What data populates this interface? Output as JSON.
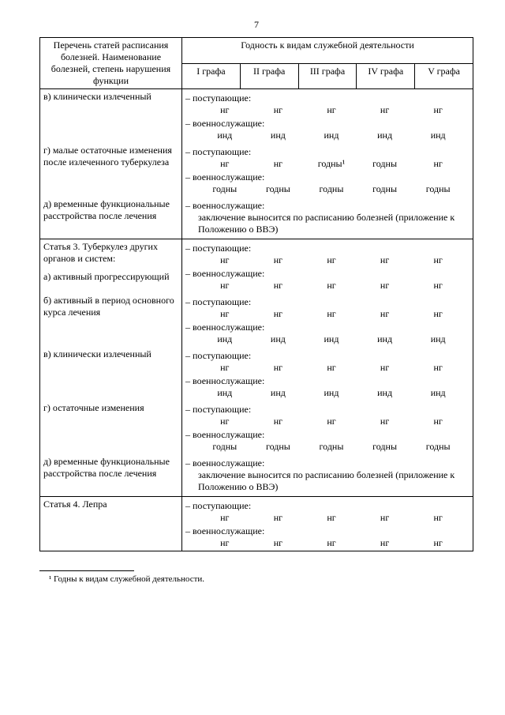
{
  "page_number": "7",
  "header": {
    "label_col": "Перечень статей расписания болезней. Наименование болезней, степень нарушения функции",
    "group": "Годность к видам служебной деятельности",
    "cols": [
      "I графа",
      "II графа",
      "III графа",
      "IV графа",
      "V графа"
    ]
  },
  "blocks": [
    {
      "rows": [
        {
          "label": "в) клинически излеченный",
          "subs": [
            {
              "heading": "– поступающие:",
              "vals": [
                "нг",
                "нг",
                "нг",
                "нг",
                "нг"
              ]
            },
            {
              "heading": "– военнослужащие:",
              "vals": [
                "инд",
                "инд",
                "инд",
                "инд",
                "инд"
              ]
            }
          ]
        },
        {
          "label": "г) малые остаточные изменения после излеченного туберкулеза",
          "subs": [
            {
              "heading": "– поступающие:",
              "vals": [
                "нг",
                "нг",
                "годны¹",
                "годны",
                "нг"
              ]
            },
            {
              "heading": "– военнослужащие:",
              "vals": [
                "годны",
                "годны",
                "годны",
                "годны",
                "годны"
              ]
            }
          ]
        },
        {
          "label": "д) временные функциональные расстройства после лечения",
          "subs": [
            {
              "heading": "– военнослужащие:",
              "note": "заключение выносится по расписанию болезней (приложение к Положению о ВВЭ)"
            }
          ]
        }
      ]
    },
    {
      "section_title": "Статья 3. Туберкулез других органов и систем:",
      "rows": [
        {
          "label": "а) активный прогрессирующий",
          "subs": [
            {
              "heading": "– поступающие:",
              "vals": [
                "нг",
                "нг",
                "нг",
                "нг",
                "нг"
              ]
            },
            {
              "heading": "– военнослужащие:",
              "vals": [
                "нг",
                "нг",
                "нг",
                "нг",
                "нг"
              ]
            }
          ]
        },
        {
          "label": "б) активный в период основ­ного курса лечения",
          "subs": [
            {
              "heading": "– поступающие:",
              "vals": [
                "нг",
                "нг",
                "нг",
                "нг",
                "нг"
              ]
            },
            {
              "heading": "– военнослужащие:",
              "vals": [
                "инд",
                "инд",
                "инд",
                "инд",
                "инд"
              ]
            }
          ]
        },
        {
          "label": "в) клинически излеченный",
          "subs": [
            {
              "heading": "– поступающие:",
              "vals": [
                "нг",
                "нг",
                "нг",
                "нг",
                "нг"
              ]
            },
            {
              "heading": "– военнослужащие:",
              "vals": [
                "инд",
                "инд",
                "инд",
                "инд",
                "инд"
              ]
            }
          ]
        },
        {
          "label": "г) остаточные изменения",
          "subs": [
            {
              "heading": "– поступающие:",
              "vals": [
                "нг",
                "нг",
                "нг",
                "нг",
                "нг"
              ]
            },
            {
              "heading": "– военнослужащие:",
              "vals": [
                "годны",
                "годны",
                "годны",
                "годны",
                "годны"
              ]
            }
          ]
        },
        {
          "label": "д) временные функциональные расстройства после лечения",
          "subs": [
            {
              "heading": "– военнослужащие:",
              "note": "заключение выносится по расписанию болезней (приложение к Положению о ВВЭ)"
            }
          ]
        }
      ]
    },
    {
      "section_title": "Статья 4. Лепра",
      "inline": true,
      "rows": [
        {
          "label": "",
          "subs": [
            {
              "heading": "– поступающие:",
              "vals": [
                "нг",
                "нг",
                "нг",
                "нг",
                "нг"
              ]
            },
            {
              "heading": "– военнослужащие:",
              "vals": [
                "нг",
                "нг",
                "нг",
                "нг",
                "нг"
              ]
            }
          ]
        }
      ]
    }
  ],
  "footnote": "¹ Годны к видам служебной деятельности."
}
